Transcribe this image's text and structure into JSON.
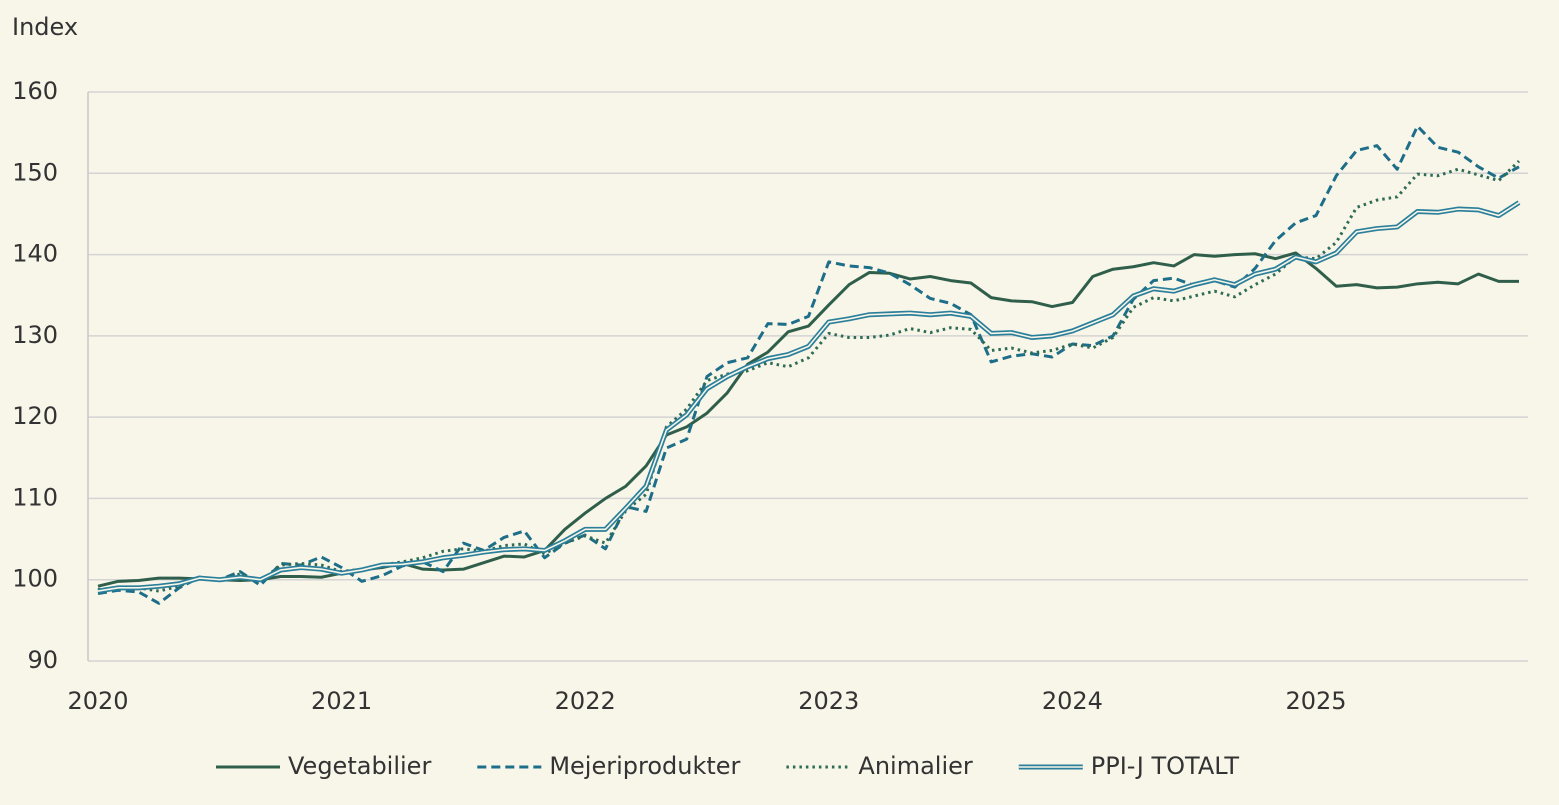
{
  "chart_data": {
    "type": "line",
    "y_label": "Index",
    "categories": [
      "2020",
      null,
      null,
      null,
      null,
      null,
      null,
      null,
      null,
      null,
      null,
      null,
      "2021",
      null,
      null,
      null,
      null,
      null,
      null,
      null,
      null,
      null,
      null,
      null,
      "2022",
      null,
      null,
      null,
      null,
      null,
      null,
      null,
      null,
      null,
      null,
      null,
      "2023",
      null,
      null,
      null,
      null,
      null,
      null,
      null,
      null,
      null,
      null,
      null,
      "2024",
      null,
      null,
      null,
      null,
      null,
      null,
      null,
      null,
      null,
      null,
      null,
      "2025",
      null,
      null,
      null,
      null,
      null,
      null,
      null,
      null,
      null,
      null
    ],
    "ylim": [
      90,
      160
    ],
    "yticks": [
      90,
      100,
      110,
      120,
      130,
      140,
      150,
      160
    ],
    "grid": true,
    "legend": "bottom",
    "series": [
      {
        "name": "Vegetabilier",
        "color": "#2f5f4b",
        "style": "solid",
        "values": [
          99.2,
          99.8,
          99.9,
          100.2,
          100.2,
          100.1,
          100,
          99.9,
          100,
          100.4,
          100.4,
          100.3,
          100.8,
          101.2,
          101.5,
          102,
          101.3,
          101.2,
          101.3,
          102.1,
          102.9,
          102.8,
          103.6,
          106.2,
          108.2,
          110,
          111.5,
          114,
          117.8,
          118.8,
          120.5,
          123,
          126.5,
          128,
          130.5,
          131.2,
          133.8,
          136.3,
          137.8,
          137.7,
          137,
          137.3,
          136.8,
          136.5,
          134.7,
          134.3,
          134.2,
          133.6,
          134.1,
          137.3,
          138.2,
          138.5,
          139,
          138.6,
          140,
          139.8,
          140,
          140.1,
          139.5,
          140.2,
          138.3,
          136.1,
          136.3,
          135.9,
          136,
          136.4,
          136.6,
          136.4,
          137.6,
          136.7,
          136.7
        ]
      },
      {
        "name": "Mejeriprodukter",
        "color": "#1d6e88",
        "style": "dashed",
        "values": [
          98.3,
          98.7,
          98.5,
          97.1,
          99,
          100.3,
          100,
          101,
          99.3,
          102,
          101.8,
          102.8,
          101.5,
          99.8,
          100.5,
          101.7,
          102.2,
          101,
          104.5,
          103.6,
          105.2,
          106,
          102.7,
          104.5,
          105.5,
          103.8,
          109,
          108.4,
          116.2,
          117.3,
          125,
          126.7,
          127.3,
          131.5,
          131.4,
          132.4,
          139.1,
          138.6,
          138.4,
          137.7,
          136.3,
          134.6,
          134,
          132.6,
          126.8,
          127.5,
          127.8,
          127.4,
          129,
          128.8,
          130,
          134.5,
          136.8,
          137.1,
          136.2,
          136.8,
          136,
          138.3,
          141.7,
          143.9,
          144.8,
          149.7,
          152.8,
          153.4,
          150.5,
          155.8,
          153.2,
          152.6,
          150.8,
          149.4,
          150.8
        ]
      },
      {
        "name": "Animalier",
        "color": "#2e6b55",
        "style": "dotted",
        "values": [
          98.8,
          99,
          99,
          98.6,
          99.2,
          100.3,
          100,
          100.7,
          99.8,
          101.8,
          102,
          101.8,
          101,
          101.3,
          101.8,
          102.2,
          102.7,
          103.5,
          103.8,
          103.5,
          104.2,
          104.4,
          103.2,
          104.5,
          105.4,
          104.5,
          108.5,
          110.5,
          118.8,
          121,
          124.5,
          125.3,
          125.7,
          126.7,
          126.2,
          127.3,
          130.3,
          129.8,
          129.8,
          130.1,
          130.9,
          130.4,
          131,
          130.8,
          128.2,
          128.5,
          127.9,
          128.2,
          129,
          128.5,
          129.8,
          133.5,
          134.7,
          134.3,
          134.9,
          135.5,
          134.8,
          136.3,
          137.6,
          139.7,
          139.5,
          141.5,
          145.8,
          146.7,
          147.1,
          149.9,
          149.7,
          150.5,
          149.8,
          149.1,
          151.5
        ]
      },
      {
        "name": "PPI-J TOTALT",
        "color": "#2a7f9a",
        "style": "double",
        "values": [
          98.6,
          99,
          99,
          99.2,
          99.5,
          100.2,
          100,
          100.3,
          100,
          101.2,
          101.5,
          101.3,
          100.8,
          101.2,
          101.8,
          101.9,
          102.2,
          102.7,
          103,
          103.4,
          103.7,
          103.8,
          103.6,
          104.8,
          106.2,
          106.2,
          108.8,
          111.5,
          118.4,
          120.3,
          123.5,
          125,
          126.2,
          127.2,
          127.7,
          128.7,
          131.7,
          132.1,
          132.6,
          132.7,
          132.8,
          132.6,
          132.8,
          132.4,
          130.3,
          130.4,
          129.8,
          130,
          130.6,
          131.6,
          132.6,
          134.9,
          135.8,
          135.5,
          136.3,
          136.9,
          136.3,
          137.6,
          138.2,
          139.7,
          139.1,
          140.2,
          142.8,
          143.2,
          143.4,
          145.3,
          145.2,
          145.6,
          145.5,
          144.8,
          146.4
        ]
      }
    ]
  }
}
